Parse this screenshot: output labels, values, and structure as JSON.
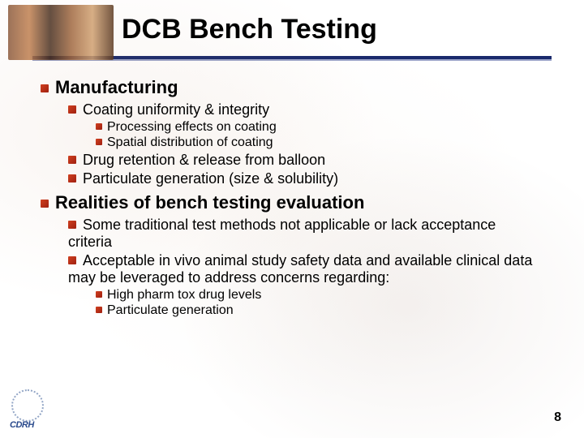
{
  "slide": {
    "title": "DCB Bench Testing",
    "page_number": "8",
    "logo_text": "CDRH",
    "colors": {
      "rule": "#1a2a6c",
      "rule_shadow": "#9aa3c8",
      "bullet": "#d04020",
      "text": "#000000",
      "logo_text": "#2a4a8c"
    },
    "font_sizes": {
      "title": 34,
      "level1": 22,
      "level2": 18,
      "level3": 16
    },
    "outline": [
      {
        "text": "Manufacturing",
        "children": [
          {
            "text": "Coating uniformity & integrity",
            "children": [
              {
                "text": "Processing effects on coating"
              },
              {
                "text": "Spatial distribution of coating"
              }
            ]
          },
          {
            "text": "Drug retention & release from balloon"
          },
          {
            "text": "Particulate generation (size & solubility)"
          }
        ]
      },
      {
        "text": "Realities of bench testing evaluation",
        "children": [
          {
            "text": "Some traditional test methods not applicable or lack acceptance criteria"
          },
          {
            "text": "Acceptable in vivo animal study safety data and available clinical data may be leveraged to address concerns regarding:",
            "children": [
              {
                "text": "High pharm tox drug levels"
              },
              {
                "text": "Particulate generation"
              }
            ]
          }
        ]
      }
    ]
  }
}
